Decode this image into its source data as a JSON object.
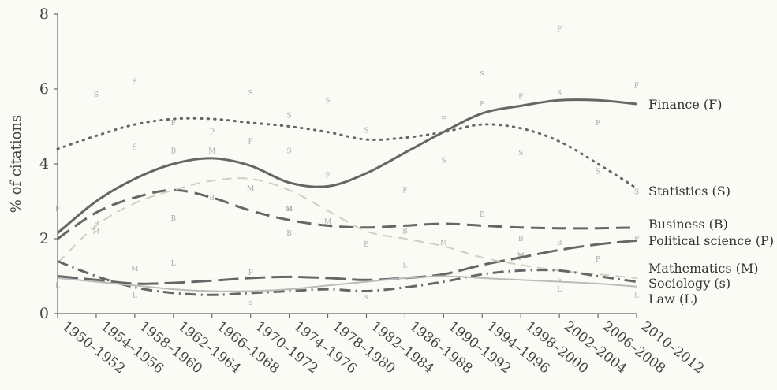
{
  "chart_data": {
    "type": "line",
    "title": "",
    "ylabel": "% of citations",
    "xlabel": "",
    "ylim": [
      0,
      8
    ],
    "yticks": [
      "0",
      "2",
      "4",
      "6",
      "8"
    ],
    "categories": [
      "1950–1952",
      "1954–1956",
      "1958–1960",
      "1962–1964",
      "1966–1968",
      "1970–1972",
      "1974–1976",
      "1978–1980",
      "1982–1984",
      "1986–1988",
      "1990–1992",
      "1994–1996",
      "1998–2000",
      "2002–2004",
      "2006–2008",
      "2010–2012"
    ],
    "grid": false,
    "legend": "inline labels at right end of lines",
    "series": [
      {
        "name": "Finance (F)",
        "style": "solid",
        "color": "#666666",
        "width": 3,
        "values": [
          2.15,
          3.0,
          3.6,
          4.0,
          4.15,
          3.95,
          3.5,
          3.4,
          3.75,
          4.3,
          4.85,
          5.35,
          5.55,
          5.7,
          5.7,
          5.6
        ]
      },
      {
        "name": "Statistics (S)",
        "style": "dotted",
        "color": "#666666",
        "width": 3,
        "values": [
          4.4,
          4.75,
          5.05,
          5.2,
          5.2,
          5.1,
          5.0,
          4.85,
          4.65,
          4.7,
          4.85,
          5.05,
          4.95,
          4.6,
          4.0,
          3.35
        ]
      },
      {
        "name": "Business (B)",
        "style": "dashed",
        "color": "#666666",
        "width": 3,
        "values": [
          2.0,
          2.7,
          3.1,
          3.3,
          3.1,
          2.75,
          2.5,
          2.35,
          2.3,
          2.35,
          2.4,
          2.35,
          2.3,
          2.28,
          2.28,
          2.3
        ]
      },
      {
        "name": "Political science (P)",
        "style": "longdash",
        "color": "#666666",
        "width": 3,
        "values": [
          1.0,
          0.9,
          0.8,
          0.82,
          0.88,
          0.95,
          0.98,
          0.95,
          0.9,
          0.95,
          1.05,
          1.3,
          1.5,
          1.7,
          1.85,
          1.95
        ]
      },
      {
        "name": "Mathematics (M)",
        "style": "dashed-light",
        "color": "#cdd0c0",
        "width": 2,
        "values": [
          1.35,
          2.35,
          2.95,
          3.3,
          3.55,
          3.6,
          3.3,
          2.75,
          2.2,
          2.0,
          1.8,
          1.5,
          1.3,
          1.15,
          1.05,
          0.95
        ]
      },
      {
        "name": "Sociology (s)",
        "style": "dashdot",
        "color": "#666666",
        "width": 3,
        "values": [
          1.4,
          1.0,
          0.7,
          0.55,
          0.5,
          0.55,
          0.6,
          0.65,
          0.6,
          0.7,
          0.85,
          1.05,
          1.15,
          1.15,
          1.0,
          0.85
        ]
      },
      {
        "name": "Law (L)",
        "style": "solid-light",
        "color": "#bbbbbb",
        "width": 2,
        "values": [
          0.95,
          0.85,
          0.75,
          0.65,
          0.6,
          0.6,
          0.65,
          0.75,
          0.85,
          0.95,
          1.0,
          0.95,
          0.9,
          0.85,
          0.8,
          0.72
        ]
      }
    ],
    "scatter_points": [
      {
        "letter": "F",
        "x": 0,
        "y": 2.8
      },
      {
        "letter": "F",
        "x": 3,
        "y": 5.1
      },
      {
        "letter": "F",
        "x": 5,
        "y": 4.6
      },
      {
        "letter": "F",
        "x": 7,
        "y": 3.7
      },
      {
        "letter": "F",
        "x": 9,
        "y": 3.3
      },
      {
        "letter": "F",
        "x": 11,
        "y": 5.6
      },
      {
        "letter": "F",
        "x": 12,
        "y": 5.8
      },
      {
        "letter": "F",
        "x": 13,
        "y": 7.6
      },
      {
        "letter": "F",
        "x": 14,
        "y": 5.1
      },
      {
        "letter": "F",
        "x": 15,
        "y": 6.1
      },
      {
        "letter": "F",
        "x": 10,
        "y": 5.2
      },
      {
        "letter": "S",
        "x": 1,
        "y": 5.85
      },
      {
        "letter": "S",
        "x": 2,
        "y": 6.2
      },
      {
        "letter": "S",
        "x": 5,
        "y": 5.9
      },
      {
        "letter": "S",
        "x": 6,
        "y": 5.3
      },
      {
        "letter": "S",
        "x": 7,
        "y": 5.7
      },
      {
        "letter": "S",
        "x": 8,
        "y": 4.9
      },
      {
        "letter": "S",
        "x": 10,
        "y": 4.1
      },
      {
        "letter": "S",
        "x": 11,
        "y": 6.4
      },
      {
        "letter": "S",
        "x": 12,
        "y": 4.3
      },
      {
        "letter": "S",
        "x": 13,
        "y": 5.9
      },
      {
        "letter": "S",
        "x": 14,
        "y": 3.8
      },
      {
        "letter": "S",
        "x": 15,
        "y": 3.25
      },
      {
        "letter": "S",
        "x": 2,
        "y": 4.45
      },
      {
        "letter": "S",
        "x": 6,
        "y": 4.35
      },
      {
        "letter": "B",
        "x": 3,
        "y": 4.35
      },
      {
        "letter": "B",
        "x": 4,
        "y": 3.1
      },
      {
        "letter": "B",
        "x": 6,
        "y": 2.8
      },
      {
        "letter": "B",
        "x": 6,
        "y": 2.15
      },
      {
        "letter": "B",
        "x": 8,
        "y": 1.85
      },
      {
        "letter": "B",
        "x": 9,
        "y": 2.2
      },
      {
        "letter": "B",
        "x": 12,
        "y": 2.0
      },
      {
        "letter": "B",
        "x": 13,
        "y": 1.9
      },
      {
        "letter": "B",
        "x": 3,
        "y": 2.55
      },
      {
        "letter": "B",
        "x": 11,
        "y": 2.65
      },
      {
        "letter": "P",
        "x": 4,
        "y": 4.85
      },
      {
        "letter": "P",
        "x": 1,
        "y": 2.4
      },
      {
        "letter": "P",
        "x": 5,
        "y": 1.1
      },
      {
        "letter": "P",
        "x": 12,
        "y": 1.5
      },
      {
        "letter": "P",
        "x": 14,
        "y": 1.45
      },
      {
        "letter": "P",
        "x": 15,
        "y": 2.0
      },
      {
        "letter": "M",
        "x": 1,
        "y": 2.2
      },
      {
        "letter": "M",
        "x": 4,
        "y": 4.35
      },
      {
        "letter": "M",
        "x": 5,
        "y": 3.35
      },
      {
        "letter": "M",
        "x": 2,
        "y": 1.2
      },
      {
        "letter": "M",
        "x": 6,
        "y": 2.8
      },
      {
        "letter": "M",
        "x": 7,
        "y": 2.45
      },
      {
        "letter": "M",
        "x": 10,
        "y": 1.9
      },
      {
        "letter": "M",
        "x": 12,
        "y": 1.55
      },
      {
        "letter": "L",
        "x": 3,
        "y": 1.35
      },
      {
        "letter": "L",
        "x": 0,
        "y": 0.75
      },
      {
        "letter": "L",
        "x": 2,
        "y": 0.5
      },
      {
        "letter": "L",
        "x": 9,
        "y": 1.3
      },
      {
        "letter": "L",
        "x": 13,
        "y": 0.65
      },
      {
        "letter": "L",
        "x": 15,
        "y": 0.5
      },
      {
        "letter": "s",
        "x": 5,
        "y": 0.3
      },
      {
        "letter": "s",
        "x": 8,
        "y": 0.45
      },
      {
        "letter": "s",
        "x": 13,
        "y": 0.9
      }
    ]
  }
}
